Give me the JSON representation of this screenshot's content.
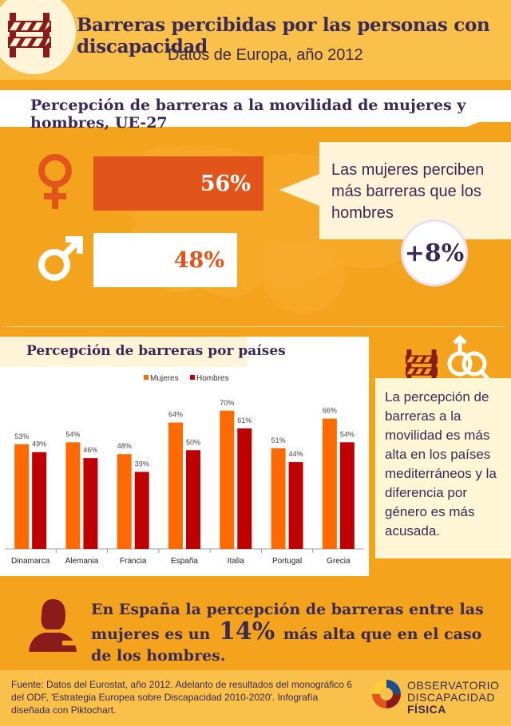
{
  "header": {
    "title": "Barreras percibidas por las personas con discapacidad",
    "subtitle": "Datos de Europa, año 2012"
  },
  "mobility": {
    "heading": "Percepción de barreras a la movilidad de mujeres y hombres, UE-27",
    "women_label": "56%",
    "women_value": 56,
    "men_label": "48%",
    "men_value": 48,
    "callout": "Las mujeres perciben más barreras que los hombres",
    "difference": "+8%"
  },
  "countries_section": {
    "heading": "Percepción de barreras por países",
    "note": "La percepción de barreras a la movilidad es más alta en los países mediterráneos y la diferencia por género es más acusada."
  },
  "chart_data": {
    "type": "bar",
    "categories": [
      "Dinamarca",
      "Alemania",
      "Francia",
      "España",
      "Italia",
      "Portugal",
      "Grecia"
    ],
    "series": [
      {
        "name": "Mujeres",
        "color": "#ff6a00",
        "values": [
          53,
          54,
          48,
          64,
          70,
          51,
          66
        ]
      },
      {
        "name": "Hombres",
        "color": "#c00000",
        "values": [
          49,
          46,
          39,
          50,
          61,
          44,
          54
        ]
      }
    ],
    "value_labels": {
      "Mujeres": [
        "53%",
        "54%",
        "48%",
        "64%",
        "70%",
        "51%",
        "66%"
      ],
      "Hombres": [
        "49%",
        "46%",
        "39%",
        "50%",
        "61%",
        "44%",
        "54%"
      ]
    },
    "ylim": [
      0,
      80
    ],
    "legend": "top-center",
    "grid": false
  },
  "spain": {
    "text_before": "En España la percepción de barreras entre las mujeres es un",
    "pct": "14%",
    "text_after": "más alta que en el caso de los hombres."
  },
  "footer": {
    "source": "Fuente: Datos del Eurostat, año 2012. Adelanto de resultados del monográfico 6 del ODF, 'Estrategia Europea sobre Discapacidad 2010-2020'. Infografía diseñada con Piktochart.",
    "org_line1": "OBSERVATORIO",
    "org_line2": "DISCAPACIDAD",
    "org_line3": "FÍSICA"
  },
  "icons": [
    "barrier-icon",
    "female-icon",
    "male-icon",
    "gender-pair-icon",
    "woman-avatar-icon",
    "odf-logo-icon"
  ],
  "colors": {
    "background": "#f4a31c",
    "header": "#f9c04a",
    "women": "#e1551a",
    "text": "#3a2a55",
    "chart_women": "#ff6a00",
    "chart_men": "#c00000",
    "icon_dark_red": "#8b1a1a"
  }
}
